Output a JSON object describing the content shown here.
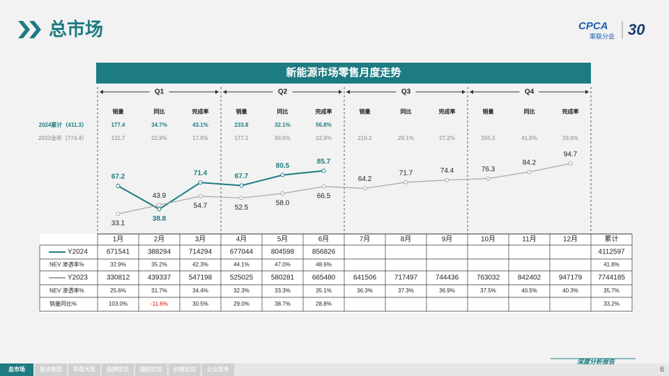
{
  "header": {
    "title": "总市场",
    "logo": "CPCA",
    "logo_sub": "乘联分会",
    "anniversary": "30"
  },
  "chart_data": {
    "type": "line",
    "title": "新能源市场零售月度走势",
    "categories": [
      "1月",
      "2月",
      "3月",
      "4月",
      "5月",
      "6月",
      "7月",
      "8月",
      "9月",
      "10月",
      "11月",
      "12月"
    ],
    "series": [
      {
        "name": "Y2024",
        "color": "#1d7b82",
        "values": [
          67.2,
          38.8,
          71.4,
          67.7,
          80.5,
          85.7,
          null,
          null,
          null,
          null,
          null,
          null
        ]
      },
      {
        "name": "Y2023",
        "color": "#a6a6a6",
        "values": [
          33.1,
          43.9,
          54.7,
          52.5,
          58.0,
          66.5,
          64.2,
          71.7,
          74.4,
          76.3,
          84.2,
          94.7
        ],
        "value_labels": [
          "33.1",
          "43.9",
          "54.7",
          "52.5",
          "58.0",
          "66.5",
          "64.2",
          "71.7",
          "74.4",
          "76.3",
          "84.2",
          "94.7"
        ]
      }
    ],
    "ylim": [
      0,
      120
    ]
  },
  "summary": {
    "quarters": [
      "Q1",
      "Q2",
      "Q3",
      "Q4"
    ],
    "columns": [
      "销量",
      "同比",
      "完成率"
    ],
    "rows": [
      {
        "label": "2024累计（411.3）",
        "cells": [
          "177.4",
          "34.7%",
          "43.1%",
          "233.8",
          "32.1%",
          "56.8%",
          null,
          null,
          null,
          null,
          null,
          null
        ]
      },
      {
        "label": "2023全年（774.4）",
        "cells": [
          "131.7",
          "22.9%",
          "17.0%",
          "177.1",
          "50.6%",
          "22.9%",
          "210.3",
          "29.1%",
          "27.2%",
          "255.3",
          "41.8%",
          "33.0%"
        ]
      }
    ]
  },
  "table": {
    "total_label": "累计",
    "negative_color": "#e00000",
    "rows": [
      {
        "label": "Y2024",
        "cells": [
          671541,
          388294,
          714294,
          677044,
          804598,
          856826,
          null,
          null,
          null,
          null,
          null,
          null,
          4112597
        ]
      },
      {
        "label": "NEV 渗透率%",
        "cells": [
          "32.9%",
          "35.2%",
          "42.3%",
          "44.1%",
          "47.0%",
          "48.6%",
          null,
          null,
          null,
          null,
          null,
          null,
          "41.8%"
        ]
      },
      {
        "label": "Y2023",
        "cells": [
          330812,
          439337,
          547198,
          525025,
          580281,
          665480,
          641506,
          717497,
          744436,
          763032,
          842402,
          947179,
          7744185
        ]
      },
      {
        "label": "NEV 渗透率%",
        "cells": [
          "25.6%",
          "31.7%",
          "34.4%",
          "32.3%",
          "33.3%",
          "35.1%",
          "36.3%",
          "37.3%",
          "36.9%",
          "37.5%",
          "40.5%",
          "40.3%",
          "35.7%"
        ]
      },
      {
        "label": "销量同比%",
        "cells": [
          "103.0%",
          "-11.6%",
          "30.5%",
          "29.0%",
          "38.7%",
          "28.8%",
          null,
          null,
          null,
          null,
          null,
          null,
          "33.2%"
        ]
      }
    ]
  },
  "footer": {
    "tabs": [
      "总市场",
      "技术类型",
      "车型大类",
      "品牌定位",
      "国别定位",
      "价格定位",
      "企业竞争"
    ],
    "report": "深度分析报告",
    "page": "6"
  }
}
